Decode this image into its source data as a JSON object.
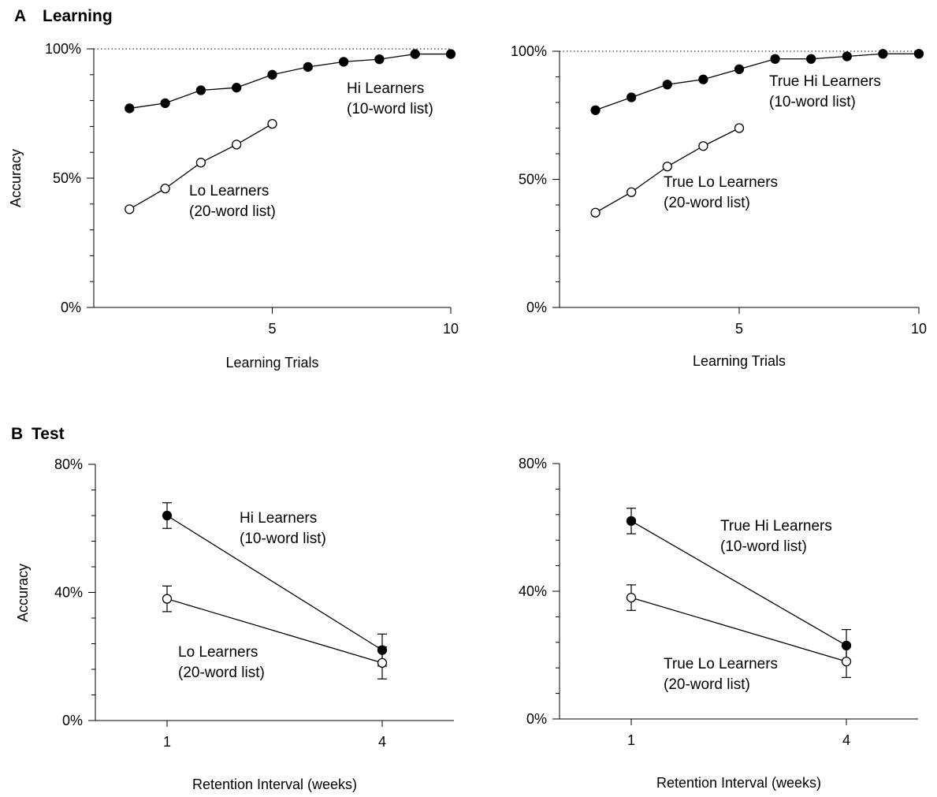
{
  "sections": {
    "learning": {
      "letter": "A",
      "title": "Learning"
    },
    "test": {
      "letter": "B",
      "title": "Test"
    }
  },
  "chart_data": [
    {
      "id": "learning-left",
      "type": "line",
      "xlabel": "Learning Trials",
      "ylabel": "Accuracy",
      "x_ticks": [
        5,
        10
      ],
      "y_ticks": [
        "0%",
        "50%",
        "100%"
      ],
      "xlim": [
        0,
        10
      ],
      "ylim": [
        0,
        100
      ],
      "reference_line": 100,
      "series": [
        {
          "name": "Hi Learners (10-word list)",
          "label_lines": [
            "Hi Learners",
            "(10-word list)"
          ],
          "marker": "filled",
          "x": [
            1,
            2,
            3,
            4,
            5,
            6,
            7,
            8,
            9,
            10
          ],
          "y": [
            77,
            79,
            84,
            85,
            90,
            93,
            95,
            96,
            98,
            98
          ]
        },
        {
          "name": "Lo Learners (20-word list)",
          "label_lines": [
            "Lo Learners",
            "(20-word list)"
          ],
          "marker": "open",
          "x": [
            1,
            2,
            3,
            4,
            5
          ],
          "y": [
            38,
            46,
            56,
            63,
            71
          ]
        }
      ]
    },
    {
      "id": "learning-right",
      "type": "line",
      "xlabel": "Learning Trials",
      "ylabel": "",
      "x_ticks": [
        5,
        10
      ],
      "y_ticks": [
        "0%",
        "50%",
        "100%"
      ],
      "xlim": [
        0,
        10
      ],
      "ylim": [
        0,
        100
      ],
      "reference_line": 100,
      "series": [
        {
          "name": "True Hi Learners (10-word list)",
          "label_lines": [
            "True Hi Learners",
            "(10-word list)"
          ],
          "marker": "filled",
          "x": [
            1,
            2,
            3,
            4,
            5,
            6,
            7,
            8,
            9,
            10
          ],
          "y": [
            77,
            82,
            87,
            89,
            93,
            97,
            97,
            98,
            99,
            99
          ]
        },
        {
          "name": "True Lo Learners (20-word list)",
          "label_lines": [
            "True Lo Learners",
            "(20-word list)"
          ],
          "marker": "open",
          "x": [
            1,
            2,
            3,
            4,
            5
          ],
          "y": [
            37,
            45,
            55,
            63,
            70
          ]
        }
      ]
    },
    {
      "id": "test-left",
      "type": "line",
      "xlabel": "Retention Interval (weeks)",
      "ylabel": "Accuracy",
      "x_ticks": [
        1,
        4
      ],
      "y_ticks": [
        "0%",
        "40%",
        "80%"
      ],
      "xlim": [
        0,
        5
      ],
      "ylim": [
        0,
        80
      ],
      "series": [
        {
          "name": "Hi Learners (10-word list)",
          "label_lines": [
            "Hi Learners",
            "(10-word list)"
          ],
          "marker": "filled",
          "x": [
            1,
            4
          ],
          "y": [
            64,
            22
          ],
          "err": [
            4,
            5
          ]
        },
        {
          "name": "Lo Learners (20-word list)",
          "label_lines": [
            "Lo Learners",
            "(20-word list)"
          ],
          "marker": "open",
          "x": [
            1,
            4
          ],
          "y": [
            38,
            18
          ],
          "err": [
            4,
            5
          ]
        }
      ]
    },
    {
      "id": "test-right",
      "type": "line",
      "xlabel": "Retention Interval (weeks)",
      "ylabel": "",
      "x_ticks": [
        1,
        4
      ],
      "y_ticks": [
        "0%",
        "40%",
        "80%"
      ],
      "xlim": [
        0,
        5
      ],
      "ylim": [
        0,
        80
      ],
      "series": [
        {
          "name": "True Hi Learners (10-word list)",
          "label_lines": [
            "True Hi Learners",
            "(10-word list)"
          ],
          "marker": "filled",
          "x": [
            1,
            4
          ],
          "y": [
            62,
            23
          ],
          "err": [
            4,
            5
          ]
        },
        {
          "name": "True Lo Learners (20-word list)",
          "label_lines": [
            "True Lo Learners",
            "(20-word list)"
          ],
          "marker": "open",
          "x": [
            1,
            4
          ],
          "y": [
            38,
            18
          ],
          "err": [
            4,
            5
          ]
        }
      ]
    }
  ]
}
